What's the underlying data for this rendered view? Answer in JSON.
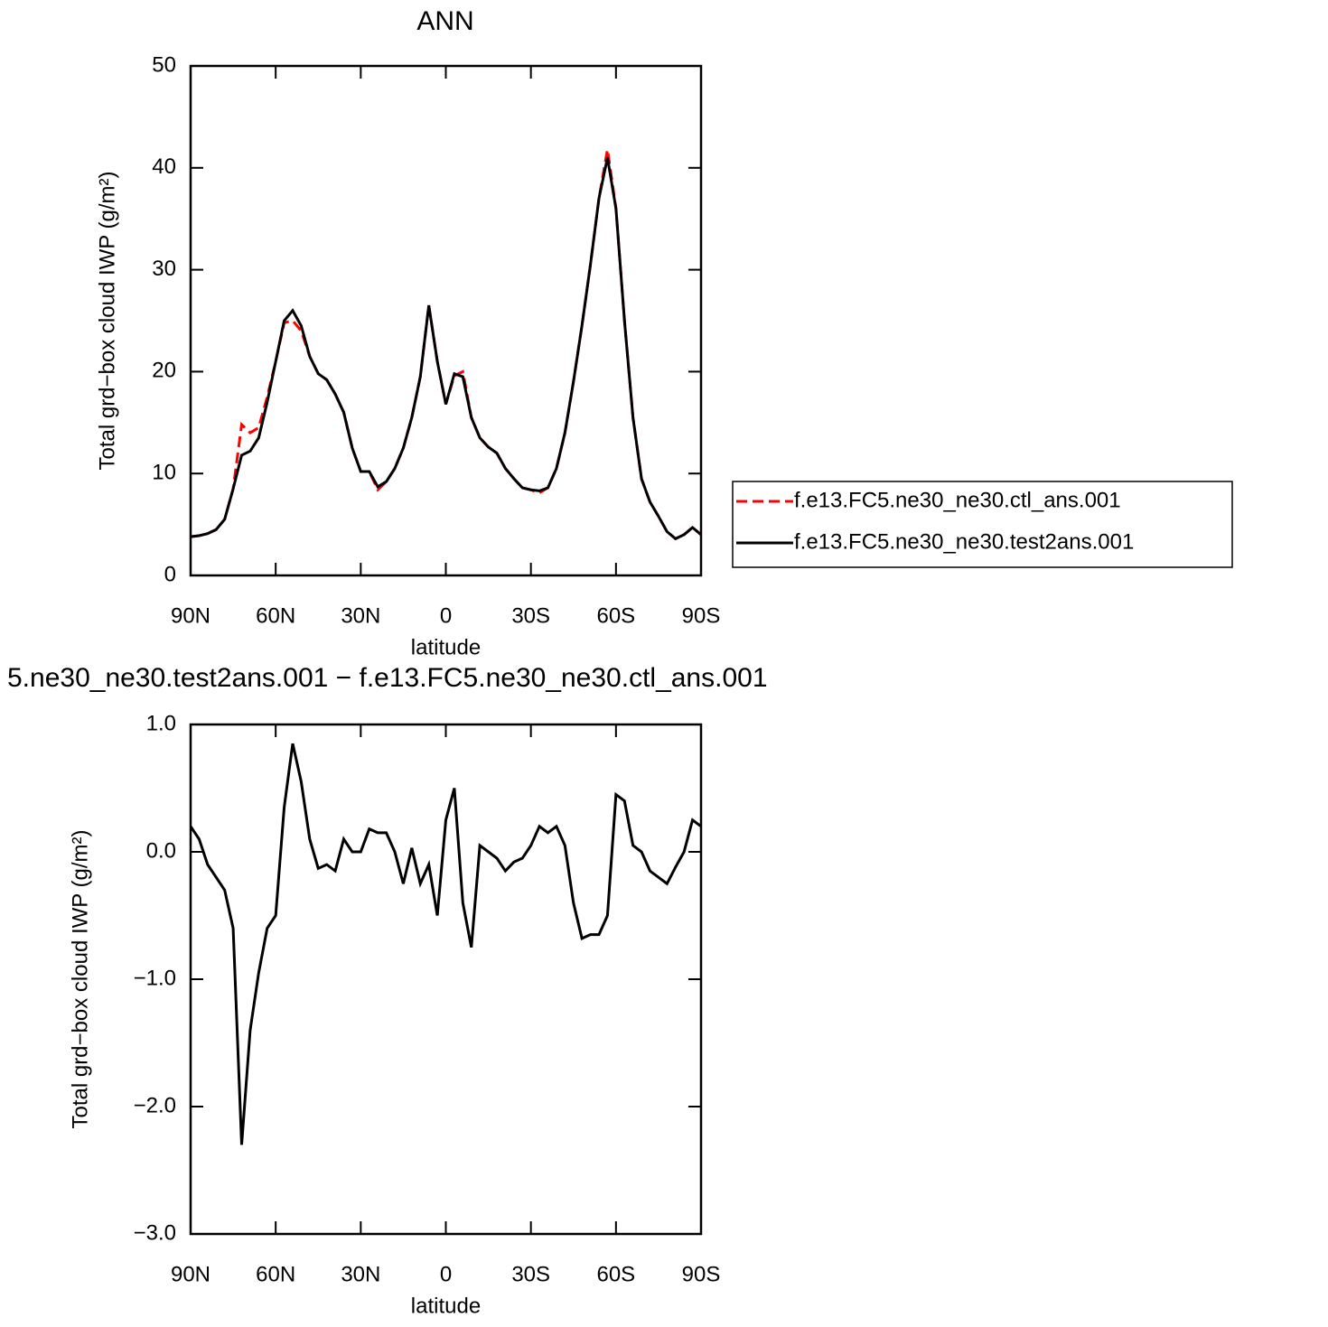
{
  "chart_data": [
    {
      "type": "line",
      "title": "ANN",
      "xlabel": "latitude",
      "ylabel": "Total grd−box cloud IWP (g/m²)",
      "x": [
        90,
        87,
        84,
        81,
        78,
        75,
        72,
        69,
        66,
        63,
        60,
        57,
        54,
        51,
        48,
        45,
        42,
        39,
        36,
        33,
        30,
        27,
        24,
        21,
        18,
        15,
        12,
        9,
        6,
        3,
        0,
        -3,
        -6,
        -9,
        -12,
        -15,
        -18,
        -21,
        -24,
        -27,
        -30,
        -33,
        -36,
        -39,
        -42,
        -45,
        -48,
        -51,
        -54,
        -57,
        -60,
        -63,
        -66,
        -69,
        -72,
        -75,
        -78,
        -81,
        -84,
        -87,
        -90
      ],
      "xlim": [
        90,
        -90
      ],
      "xticks": [
        {
          "value": 90,
          "label": "90N"
        },
        {
          "value": 60,
          "label": "60N"
        },
        {
          "value": 30,
          "label": "30N"
        },
        0,
        {
          "value": -30,
          "label": "30S"
        },
        {
          "value": -60,
          "label": "60S"
        },
        {
          "value": -90,
          "label": "90S"
        }
      ],
      "ylim": [
        0,
        50
      ],
      "yticks": [
        0,
        10,
        20,
        30,
        40,
        50
      ],
      "legend": "right",
      "series": [
        {
          "name": "f.e13.FC5.ne30_ne30.ctl_ans.001",
          "color": "#ff0000",
          "linestyle": "dashed",
          "values": [
            3.8,
            3.9,
            4.1,
            4.5,
            5.5,
            8.5,
            14.8,
            14.0,
            14.5,
            17.5,
            21,
            24.8,
            25,
            24,
            21.5,
            19.8,
            19.2,
            17.8,
            16,
            12.5,
            10.2,
            10.2,
            8.4,
            9.2,
            10.5,
            12.5,
            15.5,
            19.5,
            26.5,
            21,
            16.8,
            19.6,
            20,
            15.5,
            13.5,
            12.6,
            12,
            10.5,
            9.5,
            8.6,
            8.4,
            8.1,
            8.6,
            10.5,
            14,
            19,
            24.5,
            30.5,
            37,
            41.8,
            36,
            25,
            15.5,
            9.5,
            7.2,
            5.8,
            4.3,
            3.6,
            4.0,
            4.7,
            4.0
          ]
        },
        {
          "name": "f.e13.FC5.ne30_ne30.test2ans.001",
          "color": "#000000",
          "linestyle": "solid",
          "values": [
            3.8,
            3.9,
            4.1,
            4.5,
            5.5,
            8.5,
            11.8,
            12.2,
            13.5,
            17,
            21,
            25,
            26,
            24.5,
            21.5,
            19.8,
            19.2,
            17.8,
            16,
            12.5,
            10.2,
            10.2,
            8.7,
            9.2,
            10.5,
            12.5,
            15.5,
            19.5,
            26.5,
            21,
            16.8,
            19.8,
            19.5,
            15.5,
            13.5,
            12.6,
            12,
            10.5,
            9.5,
            8.6,
            8.4,
            8.3,
            8.6,
            10.5,
            14,
            19,
            24.5,
            30.5,
            37,
            41,
            36,
            25,
            15.5,
            9.5,
            7.2,
            5.8,
            4.3,
            3.6,
            4.0,
            4.7,
            4.0
          ]
        }
      ]
    },
    {
      "type": "line",
      "title": "5.ne30_ne30.test2ans.001 − f.e13.FC5.ne30_ne30.ctl_ans.001",
      "xlabel": "latitude",
      "ylabel": "Total grd−box cloud IWP (g/m²)",
      "x": [
        90,
        87,
        84,
        81,
        78,
        75,
        72,
        69,
        66,
        63,
        60,
        57,
        54,
        51,
        48,
        45,
        42,
        39,
        36,
        33,
        30,
        27,
        24,
        21,
        18,
        15,
        12,
        9,
        6,
        3,
        0,
        -3,
        -6,
        -9,
        -12,
        -15,
        -18,
        -21,
        -24,
        -27,
        -30,
        -33,
        -36,
        -39,
        -42,
        -45,
        -48,
        -51,
        -54,
        -57,
        -60,
        -63,
        -66,
        -69,
        -72,
        -75,
        -78,
        -81,
        -84,
        -87,
        -90
      ],
      "xlim": [
        90,
        -90
      ],
      "xticks": [
        {
          "value": 90,
          "label": "90N"
        },
        {
          "value": 60,
          "label": "60N"
        },
        {
          "value": 30,
          "label": "30N"
        },
        0,
        {
          "value": -30,
          "label": "30S"
        },
        {
          "value": -60,
          "label": "60S"
        },
        {
          "value": -90,
          "label": "90S"
        }
      ],
      "ylim": [
        -3,
        1
      ],
      "yticks": [
        {
          "value": -3,
          "label": "−3.0"
        },
        {
          "value": -2,
          "label": "−2.0"
        },
        {
          "value": -1,
          "label": "−1.0"
        },
        {
          "value": 0,
          "label": "0.0"
        },
        {
          "value": 1,
          "label": "1.0"
        }
      ],
      "series": [
        {
          "color": "#000000",
          "linestyle": "solid",
          "values": [
            0.2,
            0.1,
            -0.1,
            -0.2,
            -0.3,
            -0.6,
            -2.3,
            -1.4,
            -0.95,
            -0.6,
            -0.5,
            0.35,
            0.85,
            0.55,
            0.1,
            -0.13,
            -0.1,
            -0.15,
            0.1,
            0.0,
            0.0,
            0.18,
            0.15,
            0.15,
            0.0,
            -0.25,
            0.03,
            -0.25,
            -0.1,
            -0.5,
            0.25,
            0.5,
            -0.4,
            -0.75,
            0.05,
            0.0,
            -0.05,
            -0.15,
            -0.08,
            -0.05,
            0.05,
            0.2,
            0.15,
            0.2,
            0.05,
            -0.4,
            -0.68,
            -0.65,
            -0.65,
            -0.5,
            0.45,
            0.4,
            0.05,
            0.0,
            -0.15,
            -0.2,
            -0.25,
            -0.12,
            0.0,
            0.25,
            0.2
          ]
        }
      ]
    }
  ]
}
